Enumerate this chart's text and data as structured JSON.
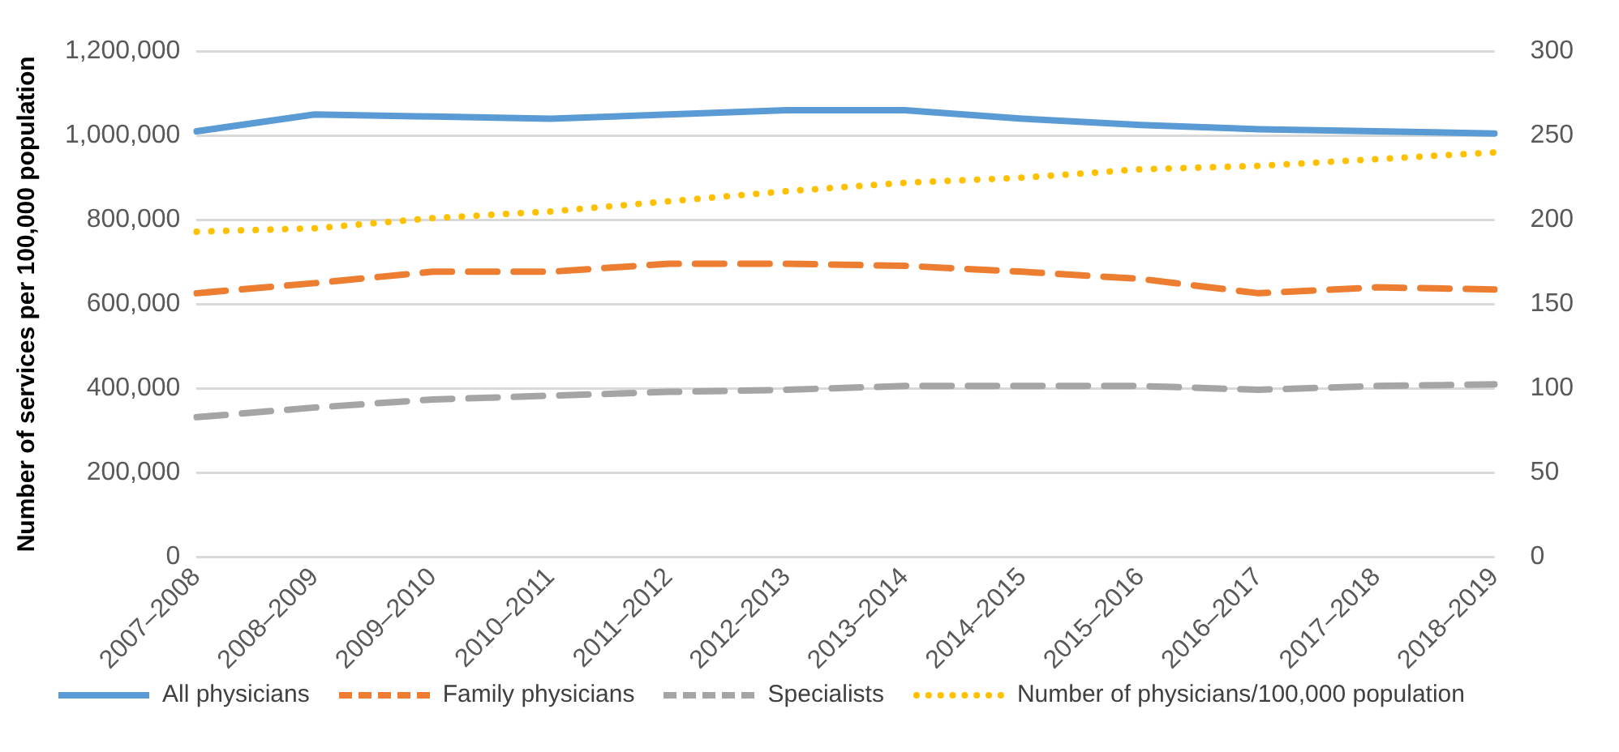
{
  "chart_data": {
    "type": "line",
    "ylabel": "Number of services per 100,000 population",
    "categories": [
      "2007–2008",
      "2008–2009",
      "2009–2010",
      "2010–2011",
      "2011–2012",
      "2012–2013",
      "2013–2014",
      "2014–2015",
      "2015–2016",
      "2016–2017",
      "2017–2018",
      "2018–2019"
    ],
    "series": [
      {
        "name": "All physicians",
        "color": "#5b9bd5",
        "line_style": "solid",
        "values": [
          1010000,
          1050000,
          1045000,
          1040000,
          1050000,
          1060000,
          1060000,
          1040000,
          1025000,
          1015000,
          1010000,
          1005000
        ]
      },
      {
        "name": "Family physicians",
        "color": "#ed7d31",
        "line_style": "dashed",
        "values": [
          626000,
          650000,
          677000,
          677000,
          696000,
          696000,
          691000,
          677000,
          660000,
          626000,
          640000,
          635000
        ]
      },
      {
        "name": "Specialists",
        "color": "#a5a5a5",
        "line_style": "dashed",
        "values": [
          332000,
          355000,
          374000,
          383000,
          392000,
          397000,
          406000,
          406000,
          406000,
          397000,
          406000,
          410000
        ]
      },
      {
        "name": "Number of physicians/100,000 population",
        "color": "#ffc000",
        "line_style": "dotted",
        "axis": "y2",
        "values": [
          193,
          195,
          201,
          205,
          211,
          217,
          222,
          225,
          230,
          232,
          236,
          240
        ]
      }
    ],
    "ylim": [
      0,
      1200000
    ],
    "yticks": [
      0,
      {
        "value": 200000,
        "label": "200,000"
      },
      {
        "value": 400000,
        "label": "400,000"
      },
      {
        "value": 600000,
        "label": "600,000"
      },
      {
        "value": 800000,
        "label": "800,000"
      },
      {
        "value": 1000000,
        "label": "1,000,000"
      },
      {
        "value": 1200000,
        "label": "1,200,000"
      }
    ],
    "y2lim": [
      0,
      300
    ],
    "y2ticks": [
      0,
      50,
      100,
      150,
      200,
      250,
      300
    ],
    "grid": "y",
    "legend": "bottom",
    "marker": "none"
  }
}
